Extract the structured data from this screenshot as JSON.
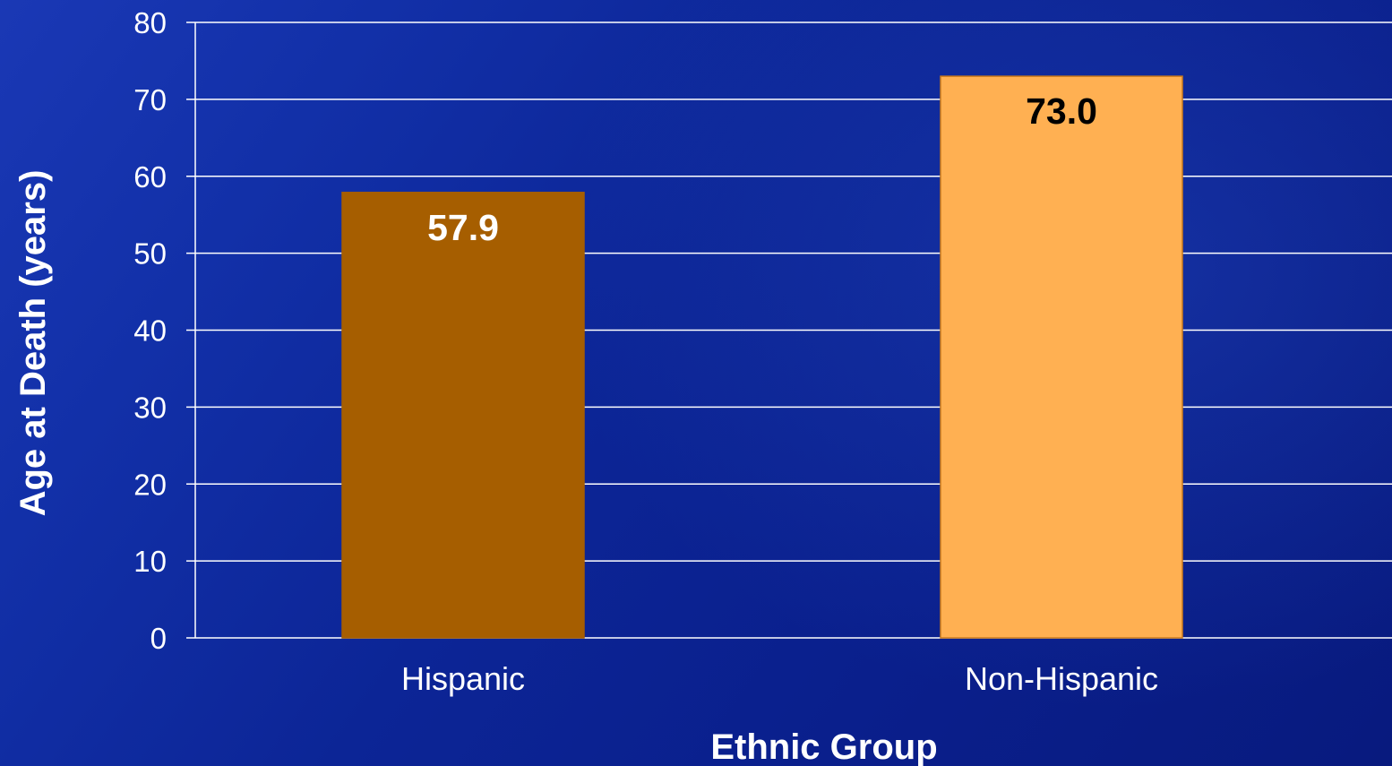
{
  "chart_data": {
    "type": "bar",
    "categories": [
      "Hispanic",
      "Non-Hispanic"
    ],
    "values": [
      57.9,
      73.0
    ],
    "data_labels": [
      "57.9",
      "73.0"
    ],
    "xlabel": "Ethnic Group",
    "ylabel": "Age at Death (years)",
    "ylim": [
      0,
      80
    ],
    "yticks": [
      0,
      10,
      20,
      30,
      40,
      50,
      60,
      70,
      80
    ],
    "grid": true,
    "legend": "none",
    "colors": {
      "bars": [
        "#a65e00",
        "#ffb052"
      ],
      "data_label_colors": [
        "#ffffff",
        "#000000"
      ],
      "bar_borders": [
        "#a65e00",
        "#cc7a1a"
      ],
      "gridline": "#ffffff",
      "text": "#ffffff"
    }
  }
}
